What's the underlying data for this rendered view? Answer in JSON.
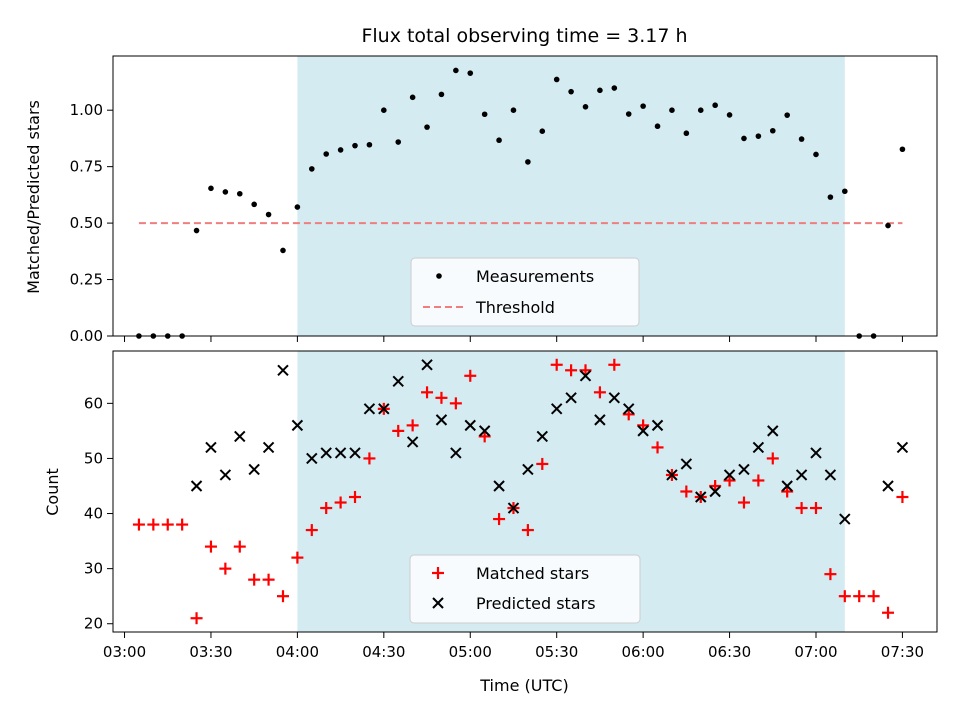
{
  "chart_data": {
    "title": "Flux total observing time = 3.17 h",
    "type": "scatter",
    "xlabel": "Time (UTC)",
    "x_unit": "HH:MM",
    "x_range": [
      "02:56",
      "07:42"
    ],
    "x_ticks": [
      "03:00",
      "03:30",
      "04:00",
      "04:30",
      "05:00",
      "05:30",
      "06:00",
      "06:30",
      "07:00",
      "07:30"
    ],
    "shaded_interval": {
      "start": "04:00",
      "end": "07:10",
      "color": "#d4ebf2"
    },
    "times": [
      "03:05",
      "03:10",
      "03:15",
      "03:20",
      "03:25",
      "03:30",
      "03:35",
      "03:40",
      "03:45",
      "03:50",
      "03:55",
      "04:00",
      "04:05",
      "04:10",
      "04:15",
      "04:20",
      "04:25",
      "04:30",
      "04:35",
      "04:40",
      "04:45",
      "04:50",
      "04:55",
      "05:00",
      "05:05",
      "05:10",
      "05:15",
      "05:20",
      "05:25",
      "05:30",
      "05:35",
      "05:40",
      "05:45",
      "05:50",
      "05:55",
      "06:00",
      "06:05",
      "06:10",
      "06:15",
      "06:20",
      "06:25",
      "06:30",
      "06:35",
      "06:40",
      "06:45",
      "06:50",
      "06:55",
      "07:00",
      "07:05",
      "07:10",
      "07:15",
      "07:20",
      "07:25",
      "07:30"
    ],
    "panels": [
      {
        "ylabel": "Matched/Predicted stars",
        "ylim": [
          0,
          1.24
        ],
        "yticks": [
          "0.00",
          "0.25",
          "0.50",
          "0.75",
          "1.00"
        ],
        "legend_position": "lower-center",
        "series": [
          {
            "name": "Measurements",
            "marker": "dot",
            "color": "#000000",
            "values": [
              0.0,
              0.0,
              0.0,
              0.0,
              0.467,
              0.654,
              0.638,
              0.63,
              0.583,
              0.538,
              0.379,
              0.571,
              0.74,
              0.806,
              0.824,
              0.843,
              0.847,
              1.0,
              0.859,
              1.057,
              0.925,
              1.07,
              1.176,
              1.164,
              0.982,
              0.867,
              1.0,
              0.771,
              0.907,
              1.136,
              1.082,
              1.015,
              1.088,
              1.098,
              0.983,
              1.018,
              0.929,
              1.0,
              0.898,
              1.0,
              1.022,
              0.979,
              0.875,
              0.885,
              0.909,
              0.978,
              0.872,
              0.804,
              0.615,
              0.641,
              0.0,
              0.0,
              0.489,
              0.827
            ]
          },
          {
            "name": "Threshold",
            "style": "dashed",
            "color": "#f07e7e",
            "x_range": [
              "03:05",
              "07:30"
            ],
            "value": 0.5
          }
        ]
      },
      {
        "ylabel": "Count",
        "ylim": [
          18.5,
          69.5
        ],
        "yticks": [
          "20",
          "30",
          "40",
          "50",
          "60"
        ],
        "legend_position": "lower-center",
        "series": [
          {
            "name": "Matched stars",
            "marker": "plus",
            "color": "#ff0000",
            "values": [
              38,
              38,
              38,
              38,
              21,
              34,
              30,
              34,
              28,
              28,
              25,
              32,
              37,
              41,
              42,
              43,
              50,
              59,
              55,
              56,
              62,
              61,
              60,
              65,
              54,
              39,
              41,
              37,
              49,
              67,
              66,
              66,
              62,
              67,
              58,
              56,
              52,
              47,
              44,
              43,
              45,
              46,
              42,
              46,
              50,
              44,
              41,
              41,
              29,
              25,
              25,
              25,
              22,
              43
            ]
          },
          {
            "name": "Predicted stars",
            "marker": "cross",
            "color": "#000000",
            "values": [
              null,
              null,
              null,
              null,
              45,
              52,
              47,
              54,
              48,
              52,
              66,
              56,
              50,
              51,
              51,
              51,
              59,
              59,
              64,
              53,
              67,
              57,
              51,
              56,
              55,
              45,
              41,
              48,
              54,
              59,
              61,
              65,
              57,
              61,
              59,
              55,
              56,
              47,
              49,
              43,
              44,
              47,
              48,
              52,
              55,
              45,
              47,
              51,
              47,
              39,
              null,
              null,
              45,
              52
            ]
          }
        ]
      }
    ]
  }
}
